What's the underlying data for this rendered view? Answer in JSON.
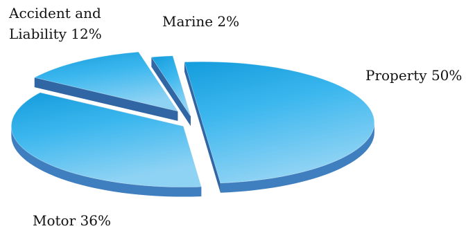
{
  "chart_data": {
    "type": "pie",
    "title": "",
    "categories": [
      "Property",
      "Motor",
      "Accident and Liability",
      "Marine"
    ],
    "values": [
      50,
      36,
      12,
      2
    ],
    "slice_labels": [
      {
        "lines": [
          "Property 50%"
        ]
      },
      {
        "lines": [
          "Motor 36%"
        ]
      },
      {
        "lines": [
          "Accident and",
          "Liability  12%"
        ]
      },
      {
        "lines": [
          "Marine 2%"
        ]
      }
    ],
    "style": "3d-exploded",
    "colors": {
      "top_light": "#8fd3f4",
      "top_mid": "#3cb7ee",
      "top_dark": "#149cdc",
      "side": "#3f7fbf",
      "side_dark": "#2f66a3"
    }
  }
}
